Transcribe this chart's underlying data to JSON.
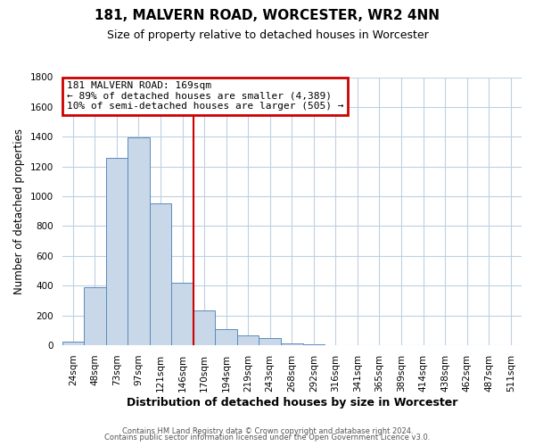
{
  "title": "181, MALVERN ROAD, WORCESTER, WR2 4NN",
  "subtitle": "Size of property relative to detached houses in Worcester",
  "xlabel": "Distribution of detached houses by size in Worcester",
  "ylabel": "Number of detached properties",
  "bin_labels": [
    "24sqm",
    "48sqm",
    "73sqm",
    "97sqm",
    "121sqm",
    "146sqm",
    "170sqm",
    "194sqm",
    "219sqm",
    "243sqm",
    "268sqm",
    "292sqm",
    "316sqm",
    "341sqm",
    "365sqm",
    "389sqm",
    "414sqm",
    "438sqm",
    "462sqm",
    "487sqm",
    "511sqm"
  ],
  "bin_values": [
    25,
    390,
    1260,
    1395,
    950,
    420,
    235,
    110,
    68,
    50,
    10,
    5,
    3,
    0,
    0,
    0,
    0,
    0,
    0,
    0,
    0
  ],
  "bar_color": "#c8d8e8",
  "bar_edge_color": "#5a8abf",
  "vline_color": "#cc0000",
  "ylim": [
    0,
    1800
  ],
  "yticks": [
    0,
    200,
    400,
    600,
    800,
    1000,
    1200,
    1400,
    1600,
    1800
  ],
  "annotation_title": "181 MALVERN ROAD: 169sqm",
  "annotation_line1": "← 89% of detached houses are smaller (4,389)",
  "annotation_line2": "10% of semi-detached houses are larger (505) →",
  "annotation_box_color": "#cc0000",
  "footnote1": "Contains HM Land Registry data © Crown copyright and database right 2024.",
  "footnote2": "Contains public sector information licensed under the Open Government Licence v3.0.",
  "background_color": "#ffffff",
  "grid_color": "#c0d0e0",
  "title_fontsize": 11,
  "subtitle_fontsize": 9,
  "ylabel_fontsize": 8.5,
  "xlabel_fontsize": 9,
  "tick_fontsize": 7.5,
  "annot_fontsize": 8,
  "footnote_fontsize": 6
}
